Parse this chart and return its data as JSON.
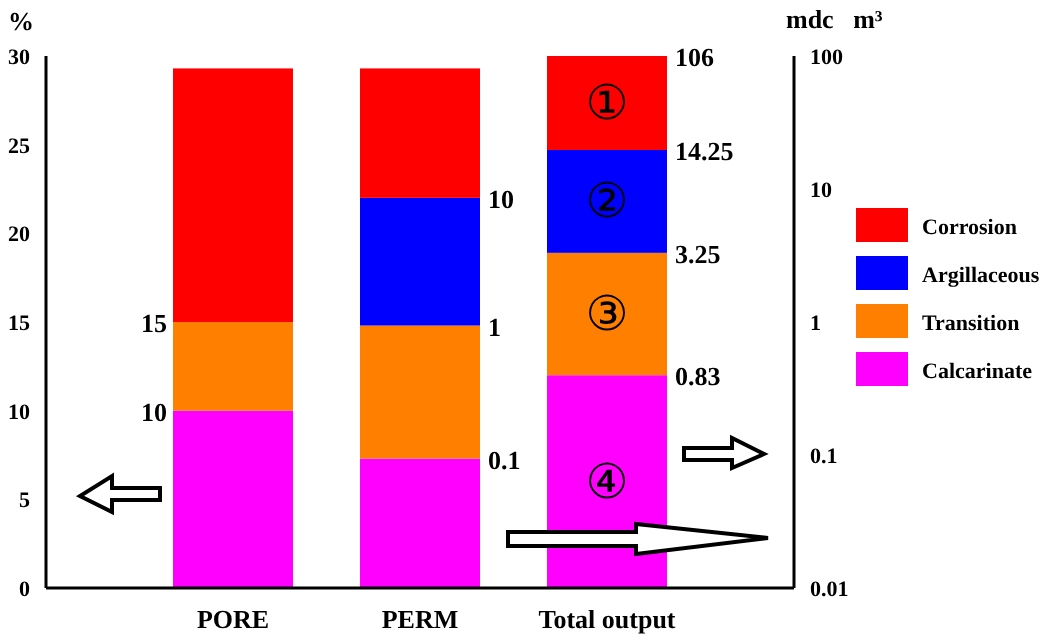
{
  "chart_data": {
    "type": "bar",
    "stacked": true,
    "categories": [
      "PORE",
      "PERM",
      "Total output"
    ],
    "series": [
      {
        "name": "Calcarinate",
        "color": "#ff00ff",
        "values": [
          10,
          7.3,
          12
        ]
      },
      {
        "name": "Transition",
        "color": "#ff8000",
        "values": [
          5,
          7.5,
          6.9
        ]
      },
      {
        "name": "Argillaceous",
        "color": "#0000ff",
        "values": [
          null,
          7.2,
          5.8
        ]
      },
      {
        "name": "Corrosion",
        "color": "#ff0000",
        "values": [
          14.3,
          7.3,
          5.3
        ]
      }
    ],
    "ylabel": "%",
    "y2label": "mdc   m³",
    "ylim": [
      0,
      30
    ],
    "yticks": [
      0,
      5,
      10,
      15,
      20,
      25,
      30
    ],
    "y2lim": [
      0.01,
      100
    ],
    "y2ticks": [
      0.01,
      0.1,
      1,
      10,
      100
    ],
    "log": "y2",
    "annotations": [
      {
        "text": "10",
        "x": "PORE",
        "y": 10
      },
      {
        "text": "15",
        "x": "PORE",
        "y": 15
      },
      {
        "text": "0.1",
        "x": "PERM",
        "y": 7.3
      },
      {
        "text": "1",
        "x": "PERM",
        "y": 14.8
      },
      {
        "text": "10",
        "x": "PERM",
        "y": 22
      },
      {
        "text": "0.83",
        "x": "Total output",
        "y": 12
      },
      {
        "text": "3.25",
        "x": "Total output",
        "y": 18.9
      },
      {
        "text": "14.25",
        "x": "Total output",
        "y": 24.7
      },
      {
        "text": "106",
        "x": "Total output",
        "y": 30
      },
      "①",
      "②",
      "③",
      "④"
    ],
    "legend": "right",
    "grid": false
  }
}
